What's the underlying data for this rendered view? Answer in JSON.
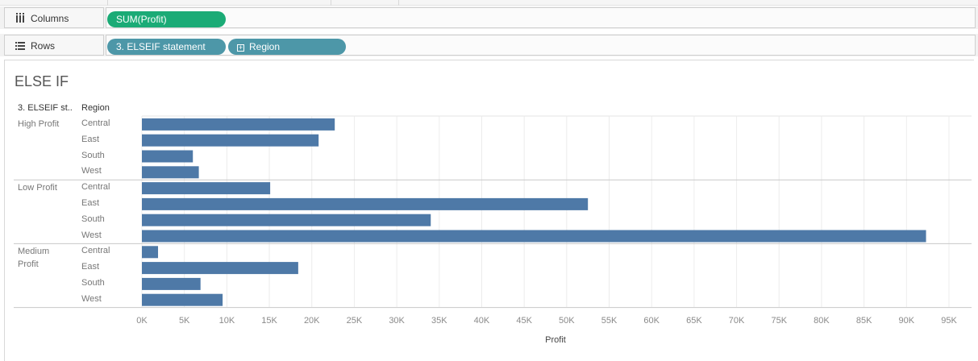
{
  "shelves": {
    "columns": {
      "label": "Columns",
      "pills": [
        "SUM(Profit)"
      ]
    },
    "rows": {
      "label": "Rows",
      "pills": [
        "3. ELSEIF statement",
        "Region"
      ]
    }
  },
  "view_title": "ELSE IF",
  "headers": {
    "group": "3. ELSEIF st..",
    "region": "Region"
  },
  "chart_data": {
    "type": "bar",
    "orientation": "horizontal",
    "title": "ELSE IF",
    "xlabel": "Profit",
    "xlim": [
      0,
      95000
    ],
    "x_ticks": [
      "0K",
      "5K",
      "10K",
      "15K",
      "20K",
      "25K",
      "30K",
      "35K",
      "40K",
      "45K",
      "50K",
      "55K",
      "60K",
      "65K",
      "70K",
      "75K",
      "80K",
      "85K",
      "90K",
      "95K"
    ],
    "grid": "vertical",
    "bar_color": "#4e79a7",
    "groups": [
      {
        "name_lines": [
          "High Profit"
        ],
        "regions": [
          "Central",
          "East",
          "South",
          "West"
        ],
        "values": [
          22700,
          20800,
          6000,
          6700
        ]
      },
      {
        "name_lines": [
          "Low Profit"
        ],
        "regions": [
          "Central",
          "East",
          "South",
          "West"
        ],
        "values": [
          15100,
          52500,
          34000,
          92300
        ]
      },
      {
        "name_lines": [
          "Medium",
          "Profit"
        ],
        "regions": [
          "Central",
          "East",
          "South",
          "West"
        ],
        "values": [
          1900,
          18400,
          6900,
          9500
        ]
      }
    ]
  }
}
